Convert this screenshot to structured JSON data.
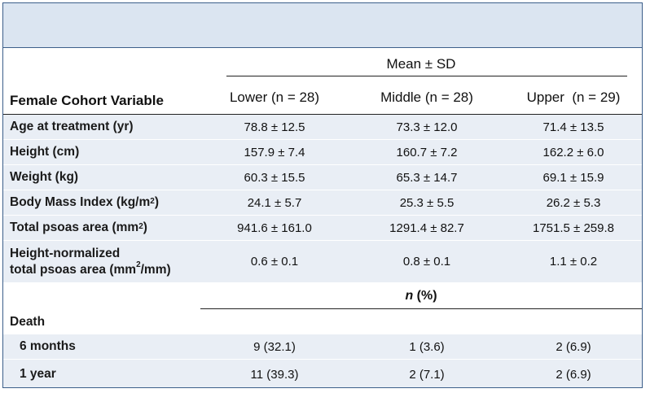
{
  "header": {
    "group_label": "Mean ± SD",
    "row_label": "Female Cohort Variable",
    "columns": [
      "Lower (n = 28)",
      "Middle (n = 28)",
      "Upper  (n = 29)"
    ]
  },
  "rows": [
    {
      "label": "Age at treatment (yr)",
      "values": [
        "78.8 ± 12.5",
        "73.3 ± 12.0",
        "71.4 ± 13.5"
      ]
    },
    {
      "label": "Height (cm)",
      "values": [
        "157.9 ± 7.4",
        "160.7 ± 7.2",
        "162.2 ± 6.0"
      ]
    },
    {
      "label": "Weight (kg)",
      "values": [
        "60.3 ± 15.5",
        "65.3 ± 14.7",
        "69.1 ± 15.9"
      ]
    },
    {
      "label_pre": "Body Mass Index (kg/m",
      "label_sup": "2",
      "label_post": ")",
      "values": [
        "24.1 ± 5.7",
        "25.3 ± 5.5",
        "26.2 ± 5.3"
      ]
    },
    {
      "label_pre": "Total psoas area (mm",
      "label_sup": "2",
      "label_post": ")",
      "values": [
        "941.6 ± 161.0",
        "1291.4 ± 82.7",
        "1751.5 ± 259.8"
      ]
    },
    {
      "label_line1": "Height-normalized",
      "label_line2_pre": "total psoas area (mm",
      "label_sup": "2",
      "label_line2_post": "/mm)",
      "values": [
        "0.6 ± 0.1",
        "0.8 ± 0.1",
        "1.1 ± 0.2"
      ]
    }
  ],
  "count_header": {
    "n": "n",
    "rest": " (%)"
  },
  "death": {
    "label": "Death",
    "rows": [
      {
        "label": "6 months",
        "values": [
          "9 (32.1)",
          "1 (3.6)",
          "2 (6.9)"
        ]
      },
      {
        "label": "1 year",
        "values": [
          "11 (39.3)",
          "2 (7.1)",
          "2 (6.9)"
        ]
      }
    ]
  }
}
